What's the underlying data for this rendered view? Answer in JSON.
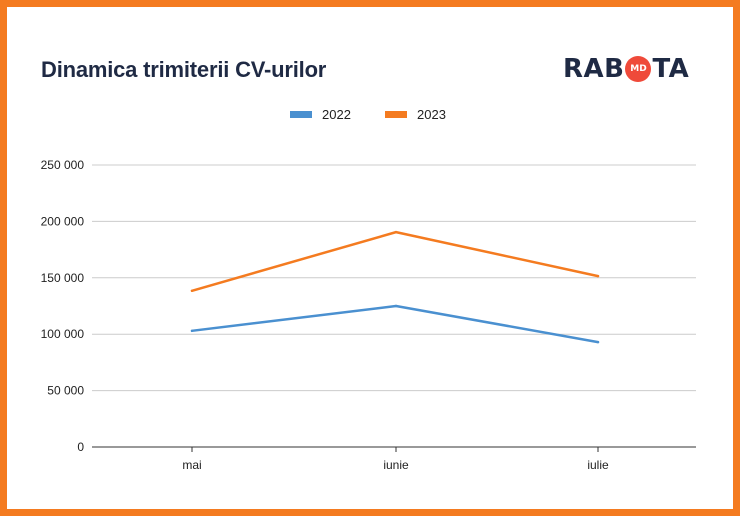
{
  "title": "Dinamica trimiterii CV-urilor",
  "logo": {
    "left": "RAB",
    "badge": "MD",
    "right": "TA"
  },
  "colors": {
    "border": "#f47b20",
    "series_2022": "#4a90d0",
    "series_2023": "#f47b20",
    "title": "#1f2a44",
    "logo_badge": "#ef4a3a"
  },
  "chart_data": {
    "type": "line",
    "categories": [
      "mai",
      "iunie",
      "iulie"
    ],
    "series": [
      {
        "name": "2022",
        "values": [
          103000,
          125000,
          93000
        ],
        "color": "#4a90d0"
      },
      {
        "name": "2023",
        "values": [
          138500,
          190500,
          151500
        ],
        "color": "#f47b20"
      }
    ],
    "ylim": [
      0,
      250000
    ],
    "yticks": [
      0,
      50000,
      100000,
      150000,
      200000,
      250000
    ],
    "ytick_labels": [
      "0",
      "50 000",
      "100 000",
      "150 000",
      "200 000",
      "250 000"
    ],
    "grid": true,
    "legend": "top-center"
  }
}
